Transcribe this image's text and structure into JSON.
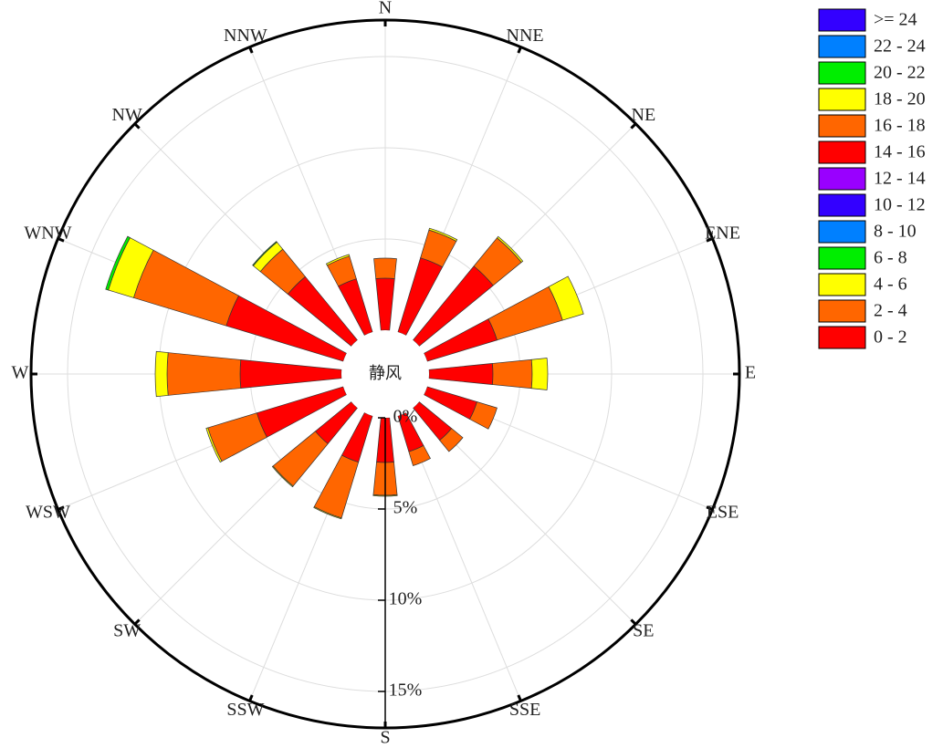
{
  "chart_data": {
    "type": "windrose",
    "categories": [
      "N",
      "NNE",
      "NE",
      "ENE",
      "E",
      "ESE",
      "SE",
      "SSE",
      "S",
      "SSW",
      "SW",
      "WSW",
      "W",
      "WNW",
      "NW",
      "NNW"
    ],
    "calm_label": "静风",
    "rlim": [
      0,
      17
    ],
    "rticks": [
      {
        "value": 0,
        "label": "0%"
      },
      {
        "value": 5,
        "label": "5%"
      },
      {
        "value": 10,
        "label": "10%"
      },
      {
        "value": 15,
        "label": "15%"
      }
    ],
    "grid": true,
    "legend": "right",
    "series": [
      {
        "name": "0 - 2",
        "color": "#ff0000",
        "values": [
          2.85,
          4.25,
          5.25,
          4.0,
          3.5,
          2.85,
          2.3,
          2.05,
          2.45,
          2.65,
          2.55,
          4.95,
          5.55,
          6.7,
          4.5,
          3.05
        ]
      },
      {
        "name": "2 - 4",
        "color": "#ff6600",
        "values": [
          1.1,
          1.6,
          2.0,
          3.75,
          2.15,
          1.15,
          0.8,
          0.8,
          1.8,
          3.2,
          3.0,
          2.8,
          4.0,
          5.3,
          1.95,
          1.3
        ]
      },
      {
        "name": "4 - 6",
        "color": "#ffff00",
        "values": [
          0,
          0.1,
          0.1,
          1.2,
          0.85,
          0,
          0,
          0,
          0.05,
          0.05,
          0.05,
          0.1,
          0.65,
          1.45,
          0.5,
          0.1
        ]
      },
      {
        "name": "6 - 8",
        "color": "#00ee00",
        "values": [
          0,
          0,
          0,
          0,
          0,
          0,
          0,
          0,
          0,
          0,
          0,
          0,
          0,
          0.15,
          0.05,
          0
        ]
      },
      {
        "name": "8 - 10",
        "color": "#0080ff",
        "values": [
          0,
          0,
          0,
          0,
          0,
          0,
          0,
          0,
          0,
          0,
          0,
          0,
          0,
          0,
          0,
          0
        ]
      },
      {
        "name": "10 - 12",
        "color": "#3300ff",
        "values": [
          0,
          0,
          0,
          0,
          0,
          0,
          0,
          0,
          0,
          0,
          0,
          0,
          0,
          0,
          0,
          0
        ]
      },
      {
        "name": "12 - 14",
        "color": "#9900ff",
        "values": [
          0,
          0,
          0,
          0,
          0,
          0,
          0,
          0,
          0,
          0,
          0,
          0,
          0,
          0,
          0,
          0
        ]
      },
      {
        "name": "14 - 16",
        "color": "#ff0000",
        "values": [
          0,
          0,
          0,
          0,
          0,
          0,
          0,
          0,
          0,
          0,
          0,
          0,
          0,
          0,
          0,
          0
        ]
      },
      {
        "name": "16 - 18",
        "color": "#ff6600",
        "values": [
          0,
          0,
          0,
          0,
          0,
          0,
          0,
          0,
          0,
          0,
          0,
          0,
          0,
          0,
          0,
          0
        ]
      },
      {
        "name": "18 - 20",
        "color": "#ffff00",
        "values": [
          0,
          0,
          0,
          0,
          0,
          0,
          0,
          0,
          0,
          0,
          0,
          0,
          0,
          0,
          0,
          0
        ]
      },
      {
        "name": "20 - 22",
        "color": "#00ee00",
        "values": [
          0,
          0,
          0,
          0,
          0,
          0,
          0,
          0,
          0,
          0,
          0,
          0,
          0,
          0,
          0,
          0
        ]
      },
      {
        "name": "22 - 24",
        "color": "#0080ff",
        "values": [
          0,
          0,
          0,
          0,
          0,
          0,
          0,
          0,
          0,
          0,
          0,
          0,
          0,
          0,
          0,
          0
        ]
      },
      {
        "name": ">= 24",
        "color": "#3300ff",
        "values": [
          0,
          0,
          0,
          0,
          0,
          0,
          0,
          0,
          0,
          0,
          0,
          0,
          0,
          0,
          0,
          0
        ]
      }
    ]
  }
}
